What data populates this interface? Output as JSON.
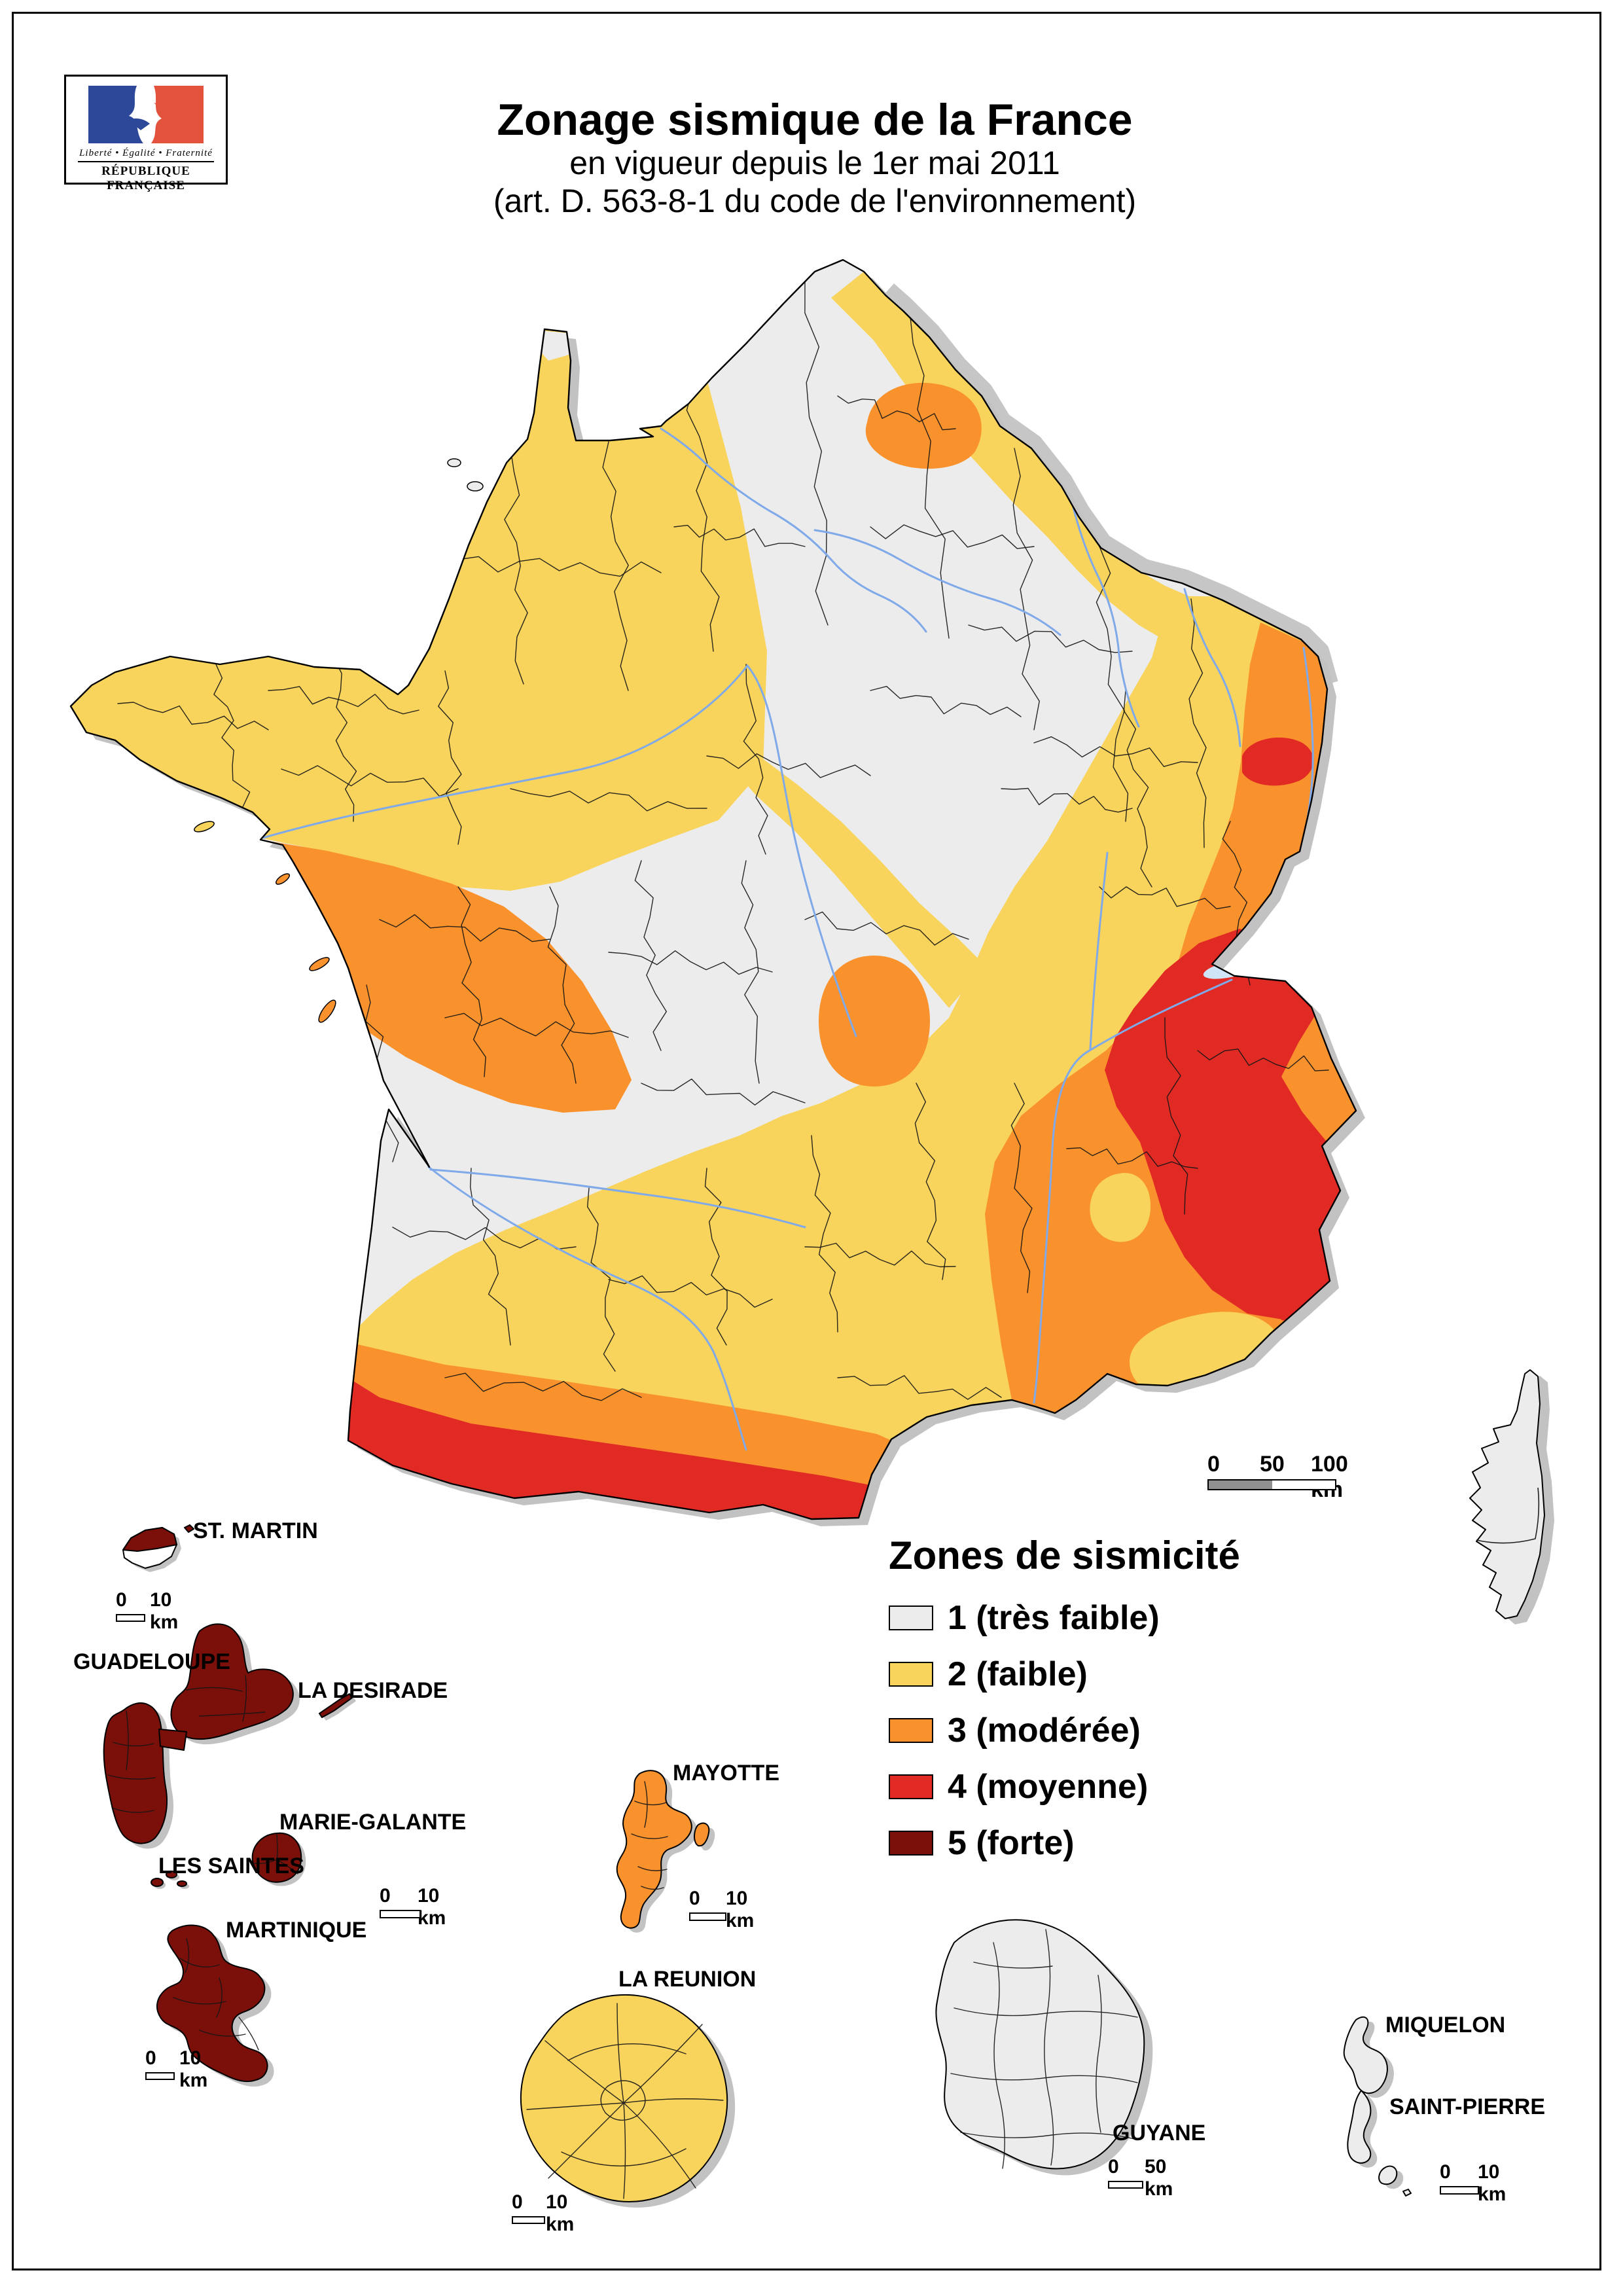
{
  "header": {
    "title_line1": "Zonage sismique de la France",
    "title_line2": "en vigueur depuis le 1er mai 2011",
    "title_line3": "(art. D. 563-8-1 du code de l'environnement)"
  },
  "logo": {
    "motto": "Liberté • Égalité • Fraternité",
    "name": "RÉPUBLIQUE FRANÇAISE",
    "blue": "#2D4899",
    "red": "#E2523C"
  },
  "legend": {
    "title": "Zones de sismicité",
    "items": [
      {
        "label": "1 (très faible)",
        "color": "#ECECEC"
      },
      {
        "label": "2 (faible)",
        "color": "#F8D45C"
      },
      {
        "label": "3 (modérée)",
        "color": "#F9922D"
      },
      {
        "label": "4 (moyenne)",
        "color": "#E22A25"
      },
      {
        "label": "5 (forte)",
        "color": "#7B0F0A"
      }
    ]
  },
  "zones": {
    "z1": "#ECECEC",
    "z2": "#F8D45C",
    "z3": "#F9922D",
    "z4": "#E22A25",
    "z5": "#7B0F0A",
    "shadow": "#C2C2C2",
    "river": "#7FA9E8",
    "lake": "#CFE4F7"
  },
  "scales": {
    "main": {
      "zero": "0",
      "mid": "50",
      "end": "100 km"
    },
    "ten": {
      "zero": "0",
      "end": "10 km"
    },
    "fifty": {
      "zero": "0",
      "end": "50 km"
    }
  },
  "islands": {
    "stmartin": {
      "label": "ST. MARTIN"
    },
    "guadeloupe": {
      "label": "GUADELOUPE"
    },
    "desirade": {
      "label": "LA DESIRADE"
    },
    "mariegalante": {
      "label": "MARIE-GALANTE"
    },
    "saintes": {
      "label": "LES SAINTES"
    },
    "martinique": {
      "label": "MARTINIQUE"
    },
    "mayotte": {
      "label": "MAYOTTE"
    },
    "reunion": {
      "label": "LA REUNION"
    },
    "guyane": {
      "label": "GUYANE"
    },
    "miquelon": {
      "label": "MIQUELON"
    },
    "stpierre": {
      "label": "SAINT-PIERRE"
    }
  }
}
